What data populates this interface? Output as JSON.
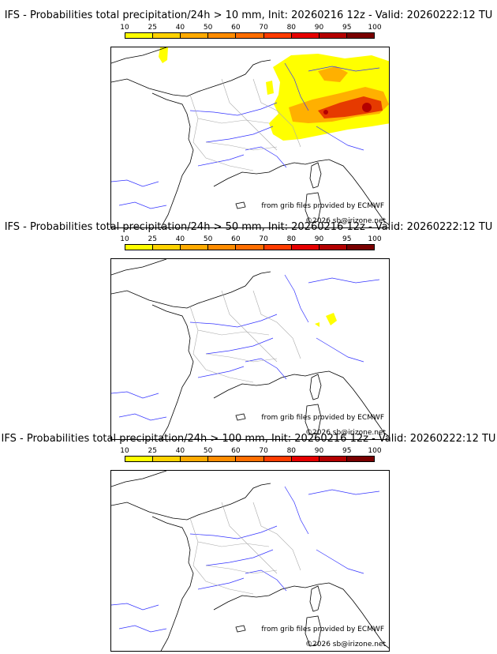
{
  "colorbar": {
    "ticks": [
      "10",
      "25",
      "40",
      "50",
      "60",
      "70",
      "80",
      "90",
      "95",
      "100"
    ],
    "colors": [
      "#ffff00",
      "#ffd200",
      "#ffaa00",
      "#ff8c00",
      "#ff6e00",
      "#ff3c00",
      "#e60000",
      "#b40000",
      "#7a0000"
    ]
  },
  "panels": [
    {
      "title": "IFS - Probabilities total precipitation/24h > 10 mm, Init: 20260216 12z - Valid: 20260222:12 TU"
    },
    {
      "title": "IFS - Probabilities total precipitation/24h > 50 mm, Init: 20260216 12z - Valid: 20260222:12 TU"
    },
    {
      "title": "IFS - Probabilities total precipitation/24h > 100 mm, Init: 20260216 12z - Valid: 20260222:12 TU"
    }
  ],
  "credits": {
    "source": "from grib files provided by ECMWF",
    "copyright": "©2026 sb@irizone.net"
  }
}
